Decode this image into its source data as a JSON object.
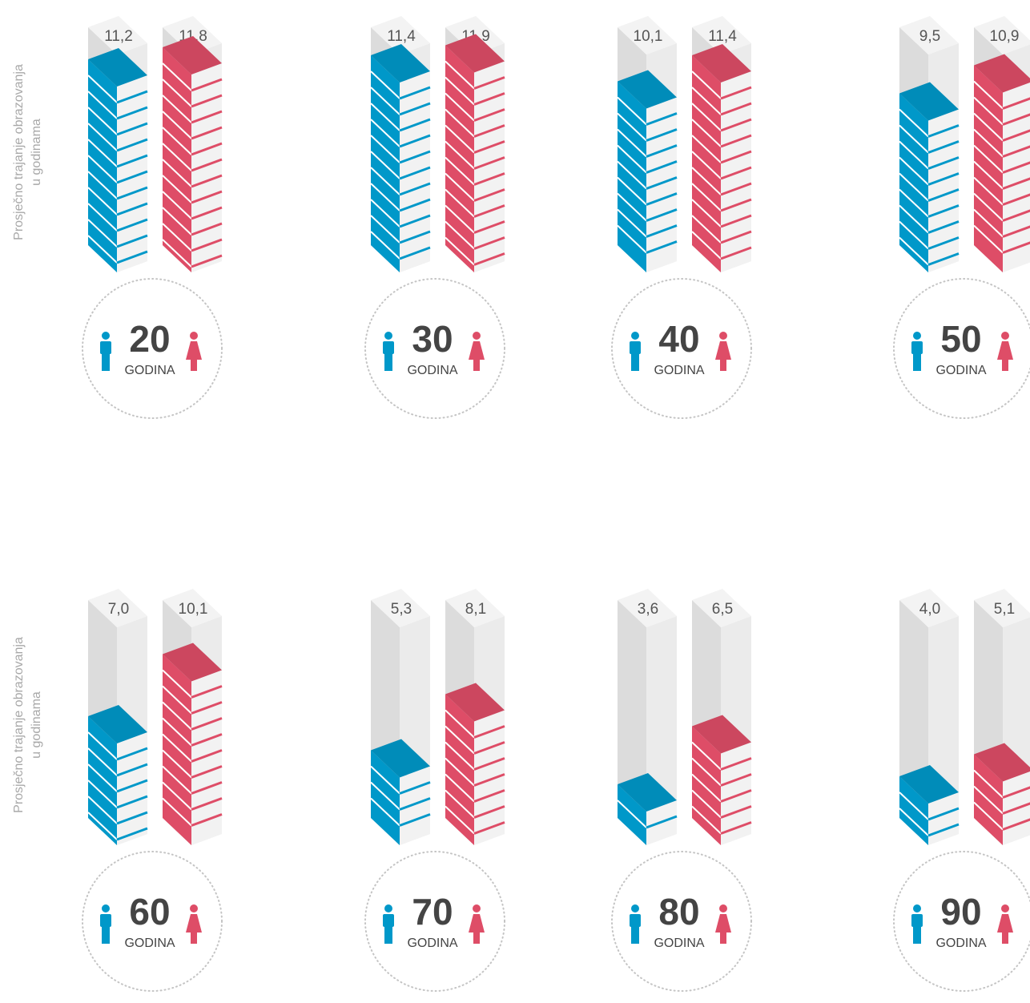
{
  "chart_data": {
    "type": "bar",
    "ylabel": [
      "Prosječno trajanje obrazovanja",
      "u godinama"
    ],
    "categories": [
      "20",
      "30",
      "40",
      "50",
      "60",
      "70",
      "80",
      "90"
    ],
    "category_unit": "GODINA",
    "ylim": [
      0,
      12
    ],
    "series": [
      {
        "color": "#0098c9",
        "values": [
          11.2,
          11.4,
          10.1,
          9.5,
          7.0,
          5.3,
          3.6,
          4.0
        ],
        "value_labels": [
          "11,2",
          "11,4",
          "10,1",
          "9,5",
          "7,0",
          "5,3",
          "3,6",
          "4,0"
        ]
      },
      {
        "color": "#de4d67",
        "values": [
          11.8,
          11.9,
          11.4,
          10.9,
          10.1,
          8.1,
          6.5,
          5.1
        ],
        "value_labels": [
          "11,8",
          "11,9",
          "11,4",
          "10,9",
          "10,1",
          "8,1",
          "6,5",
          "5,1"
        ]
      }
    ]
  }
}
